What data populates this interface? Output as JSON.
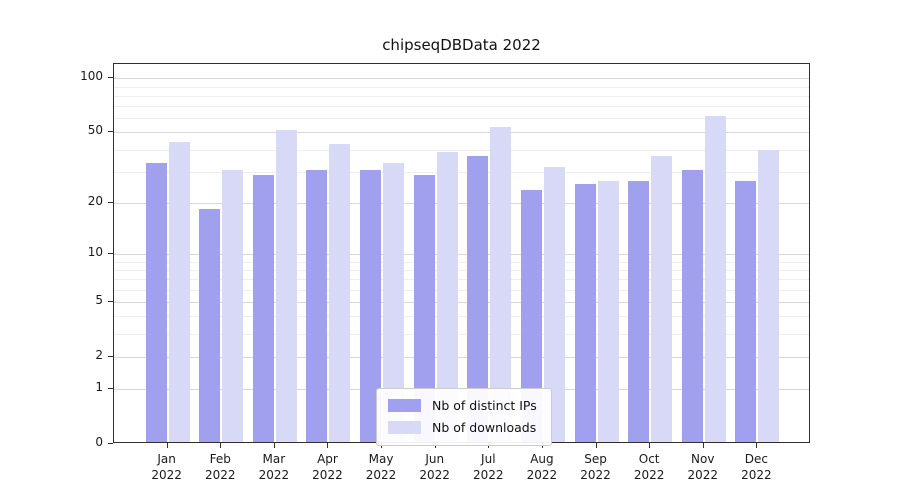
{
  "colors": {
    "ips_bar": "#a0a0ee",
    "downloads_bar": "#d8d8f7",
    "grid_major": "#d8d8d8",
    "grid_minor": "#eeeeee",
    "axis": "#2f2f2f",
    "legend_border": "#cccccc"
  },
  "chart_data": {
    "type": "bar",
    "title": "chipseqDBData 2022",
    "categories": [
      "Jan 2022",
      "Feb 2022",
      "Mar 2022",
      "Apr 2022",
      "May 2022",
      "Jun 2022",
      "Jul 2022",
      "Aug 2022",
      "Sep 2022",
      "Oct 2022",
      "Nov 2022",
      "Dec 2022"
    ],
    "series": [
      {
        "name": "Nb of distinct IPs",
        "color": "#a0a0ee",
        "values": [
          33,
          18,
          28,
          30,
          30,
          28,
          36,
          23,
          25,
          26,
          30,
          26
        ]
      },
      {
        "name": "Nb of downloads",
        "color": "#d8d8f7",
        "values": [
          43,
          30,
          50,
          42,
          33,
          38,
          52,
          31,
          26,
          36,
          60,
          39
        ]
      }
    ],
    "xlabel": "",
    "ylabel": "",
    "yscale": "log1p",
    "yticks": [
      0,
      1,
      2,
      5,
      10,
      20,
      50,
      100
    ],
    "minor_yticks": [
      3,
      4,
      6,
      7,
      8,
      9,
      30,
      40,
      60,
      70,
      80,
      90
    ],
    "ylim": [
      0,
      120
    ],
    "grid": true,
    "legend_position": "lower center"
  }
}
